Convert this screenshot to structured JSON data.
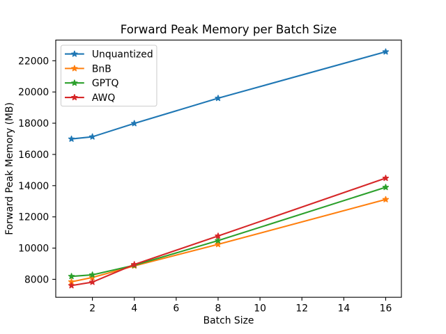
{
  "chart_data": {
    "type": "line",
    "title": "Forward Peak Memory per Batch Size",
    "xlabel": "Batch Size",
    "ylabel": "Forward Peak Memory (MB)",
    "x": [
      1,
      2,
      4,
      8,
      16
    ],
    "series": [
      {
        "name": "Unquantized",
        "color": "#1f77b4",
        "values": [
          16990,
          17130,
          17985,
          19600,
          22575
        ]
      },
      {
        "name": "BnB",
        "color": "#ff7f0e",
        "values": [
          7840,
          8120,
          8860,
          10240,
          13115
        ]
      },
      {
        "name": "GPTQ",
        "color": "#2ca02c",
        "values": [
          8190,
          8285,
          8900,
          10480,
          13895
        ]
      },
      {
        "name": "AWQ",
        "color": "#d62728",
        "values": [
          7600,
          7820,
          8950,
          10775,
          14480
        ]
      }
    ],
    "marker": "star",
    "x_ticks": [
      2,
      4,
      6,
      8,
      10,
      12,
      14,
      16
    ],
    "y_ticks": [
      8000,
      10000,
      12000,
      14000,
      16000,
      18000,
      20000,
      22000
    ],
    "xlim": [
      0.25,
      16.75
    ],
    "ylim": [
      6851.25,
      23323.75
    ],
    "grid": false,
    "legend_position": "upper left",
    "background_color": "#ffffff",
    "spine_color": "#000000",
    "text_color": "#000000",
    "legend_edge_color": "#cccccc",
    "legend_face_color": "#ffffff"
  }
}
